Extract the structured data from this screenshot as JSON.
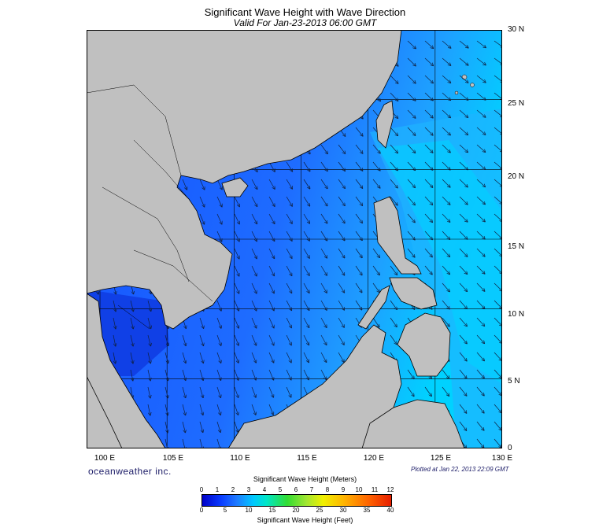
{
  "title": "Significant Wave Height with Wave Direction",
  "subtitle": "Valid For Jan-23-2013 06:00 GMT",
  "map": {
    "lon_min": 99,
    "lon_max": 130,
    "lat_min": 0,
    "lat_max": 30,
    "lat_labels": [
      "30 N",
      "25 N",
      "20 N",
      "15 N",
      "10 N",
      "5 N",
      "0"
    ],
    "lon_labels": [
      "100 E",
      "105 E",
      "110 E",
      "115 E",
      "120 E",
      "125 E",
      "130 E"
    ],
    "land_color": "#c0c0c0",
    "sea_colors": {
      "deep": "#0a3cff",
      "mid": "#1e78ff",
      "high": "#00c8ff",
      "calm": "#0000c8"
    }
  },
  "brand": "oceanweather inc.",
  "plotted": "Plotted at Jan 22, 2013 22:09 GMT",
  "legend": {
    "meters_title": "Significant Wave Height (Meters)",
    "feet_title": "Significant Wave Height (Feet)",
    "meters_ticks": [
      "0",
      "1",
      "2",
      "3",
      "4",
      "5",
      "6",
      "7",
      "8",
      "9",
      "10",
      "11",
      "12"
    ],
    "feet_ticks": [
      "0",
      "5",
      "10",
      "15",
      "20",
      "25",
      "30",
      "35",
      "40"
    ]
  }
}
